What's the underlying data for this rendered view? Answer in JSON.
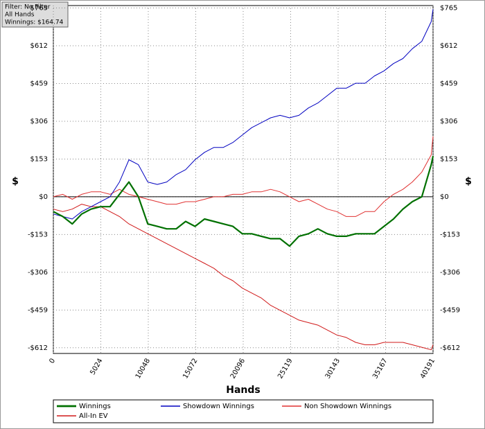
{
  "chart_data": {
    "type": "line",
    "filter_box": [
      "Filter: No Filter",
      "All Hands",
      "Winnings: $164.74"
    ],
    "x_label": "Hands",
    "y_label": "$",
    "y2_label": "$",
    "x": [
      0,
      1000,
      2000,
      3000,
      4000,
      5000,
      6000,
      7000,
      8000,
      9000,
      10000,
      11000,
      12000,
      13000,
      14000,
      15000,
      16000,
      17000,
      18000,
      19000,
      20000,
      21000,
      22000,
      23000,
      24000,
      25000,
      26000,
      27000,
      28000,
      29000,
      30000,
      31000,
      32000,
      33000,
      34000,
      35000,
      36000,
      37000,
      38000,
      39000,
      40000,
      40191
    ],
    "series": [
      {
        "name": "Winnings",
        "color": "#007000",
        "width": 2.2,
        "values": [
          -60,
          -80,
          -110,
          -70,
          -50,
          -40,
          -40,
          10,
          60,
          0,
          -110,
          -120,
          -130,
          -130,
          -100,
          -120,
          -90,
          -100,
          -110,
          -120,
          -150,
          -150,
          -160,
          -170,
          -170,
          -200,
          -160,
          -150,
          -130,
          -150,
          -160,
          -160,
          -150,
          -150,
          -150,
          -120,
          -90,
          -50,
          -20,
          0,
          130,
          165
        ]
      },
      {
        "name": "Showdown Winnings",
        "color": "#0000c0",
        "width": 1,
        "values": [
          -70,
          -80,
          -90,
          -60,
          -40,
          -20,
          0,
          60,
          150,
          130,
          60,
          50,
          60,
          90,
          110,
          150,
          180,
          200,
          200,
          220,
          250,
          280,
          300,
          320,
          330,
          320,
          330,
          360,
          380,
          410,
          440,
          440,
          460,
          460,
          490,
          510,
          540,
          560,
          600,
          630,
          710,
          760
        ]
      },
      {
        "name": "Non Showdown Winnings",
        "color": "#e03030",
        "width": 1,
        "values": [
          0,
          10,
          -10,
          10,
          20,
          20,
          10,
          30,
          10,
          0,
          -10,
          -20,
          -30,
          -30,
          -20,
          -20,
          -10,
          0,
          0,
          10,
          10,
          20,
          20,
          30,
          20,
          0,
          -20,
          -10,
          -30,
          -50,
          -60,
          -80,
          -80,
          -60,
          -60,
          -20,
          10,
          30,
          60,
          100,
          170,
          245
        ]
      },
      {
        "name": "All-In EV",
        "color": "#d01818",
        "width": 1,
        "values": [
          -50,
          -60,
          -50,
          -30,
          -40,
          -40,
          -60,
          -80,
          -110,
          -130,
          -150,
          -170,
          -190,
          -210,
          -230,
          -250,
          -270,
          -290,
          -320,
          -340,
          -370,
          -390,
          -410,
          -440,
          -460,
          -480,
          -500,
          -510,
          -520,
          -540,
          -560,
          -570,
          -590,
          -600,
          -600,
          -590,
          -590,
          -590,
          -600,
          -610,
          -620,
          -600
        ]
      }
    ],
    "xlim": [
      0,
      40191
    ],
    "xticks": [
      0,
      5024,
      10048,
      15072,
      20096,
      25119,
      30143,
      35167,
      40191
    ],
    "ylim": [
      -635,
      775
    ],
    "yticks": [
      {
        "value": -612,
        "label": "-$612"
      },
      {
        "value": -459,
        "label": "-$459"
      },
      {
        "value": -306,
        "label": "-$306"
      },
      {
        "value": -153,
        "label": "-$153"
      },
      {
        "value": 0,
        "label": "$0"
      },
      {
        "value": 153,
        "label": "$153"
      },
      {
        "value": 306,
        "label": "$306"
      },
      {
        "value": 459,
        "label": "$459"
      },
      {
        "value": 612,
        "label": "$612"
      },
      {
        "value": 765,
        "label": "$765"
      }
    ],
    "grid": true
  }
}
